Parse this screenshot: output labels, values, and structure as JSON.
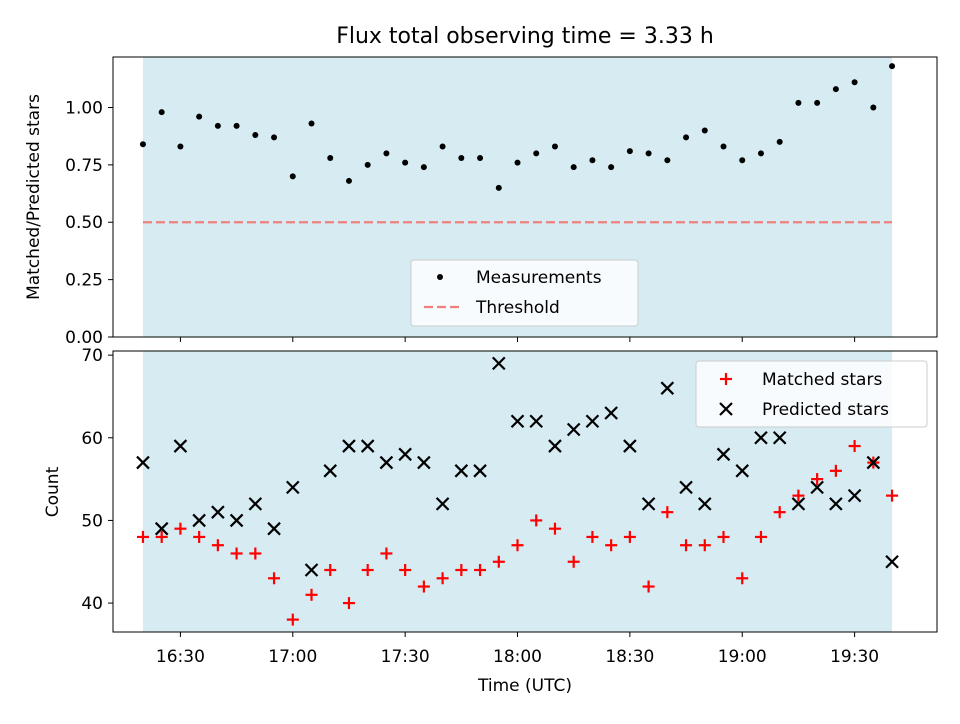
{
  "title": "Flux total observing time = 3.33 h",
  "colors": {
    "observing_span": "#add8e6",
    "measurement": "#000000",
    "threshold": "#f08080",
    "matched": "#ff0000",
    "predicted": "#000000"
  },
  "chart_data": [
    {
      "type": "scatter",
      "panel": "top",
      "ylabel": "Matched/Predicted stars",
      "ylim": [
        0,
        1.22
      ],
      "yticks": [
        "0.00",
        "0.25",
        "0.50",
        "0.75",
        "1.00"
      ],
      "x_time_range": [
        "16:12",
        "19:52"
      ],
      "shaded_span": [
        "16:20",
        "19:40"
      ],
      "legend": {
        "position": "lower center",
        "entries": [
          "Measurements",
          "Threshold"
        ]
      },
      "threshold": 0.5,
      "series": [
        {
          "name": "Measurements",
          "times": [
            "16:20",
            "16:25",
            "16:30",
            "16:35",
            "16:40",
            "16:45",
            "16:50",
            "16:55",
            "17:00",
            "17:05",
            "17:10",
            "17:15",
            "17:20",
            "17:25",
            "17:30",
            "17:35",
            "17:40",
            "17:45",
            "17:50",
            "17:55",
            "18:00",
            "18:05",
            "18:10",
            "18:15",
            "18:20",
            "18:25",
            "18:30",
            "18:35",
            "18:40",
            "18:45",
            "18:50",
            "18:55",
            "19:00",
            "19:05",
            "19:10",
            "19:15",
            "19:20",
            "19:25",
            "19:30",
            "19:35",
            "19:40"
          ],
          "values": [
            0.84,
            0.98,
            0.83,
            0.96,
            0.92,
            0.92,
            0.88,
            0.87,
            0.7,
            0.93,
            0.78,
            0.68,
            0.75,
            0.8,
            0.76,
            0.74,
            0.83,
            0.78,
            0.78,
            0.65,
            0.76,
            0.8,
            0.83,
            0.74,
            0.77,
            0.74,
            0.81,
            0.8,
            0.77,
            0.87,
            0.9,
            0.83,
            0.77,
            0.8,
            0.85,
            1.02,
            1.02,
            1.08,
            1.11,
            1.0,
            1.18
          ]
        }
      ]
    },
    {
      "type": "scatter",
      "panel": "bottom",
      "xlabel": "Time (UTC)",
      "ylabel": "Count",
      "ylim": [
        36.5,
        70.5
      ],
      "yticks": [
        "40",
        "50",
        "60",
        "70"
      ],
      "xticks": [
        "16:30",
        "17:00",
        "17:30",
        "18:00",
        "18:30",
        "19:00",
        "19:30"
      ],
      "x_time_range": [
        "16:12",
        "19:52"
      ],
      "shaded_span": [
        "16:20",
        "19:40"
      ],
      "legend": {
        "position": "upper right",
        "entries": [
          "Matched stars",
          "Predicted stars"
        ]
      },
      "times": [
        "16:20",
        "16:25",
        "16:30",
        "16:35",
        "16:40",
        "16:45",
        "16:50",
        "16:55",
        "17:00",
        "17:05",
        "17:10",
        "17:15",
        "17:20",
        "17:25",
        "17:30",
        "17:35",
        "17:40",
        "17:45",
        "17:50",
        "17:55",
        "18:00",
        "18:05",
        "18:10",
        "18:15",
        "18:20",
        "18:25",
        "18:30",
        "18:35",
        "18:40",
        "18:45",
        "18:50",
        "18:55",
        "19:00",
        "19:05",
        "19:10",
        "19:15",
        "19:20",
        "19:25",
        "19:30",
        "19:35",
        "19:40"
      ],
      "series": [
        {
          "name": "Matched stars",
          "values": [
            48,
            48,
            49,
            48,
            47,
            46,
            46,
            43,
            38,
            41,
            44,
            40,
            44,
            46,
            44,
            42,
            43,
            44,
            44,
            45,
            47,
            50,
            49,
            45,
            48,
            47,
            48,
            42,
            51,
            47,
            47,
            48,
            43,
            48,
            51,
            53,
            55,
            56,
            59,
            57,
            53
          ]
        },
        {
          "name": "Predicted stars",
          "values": [
            57,
            49,
            59,
            50,
            51,
            50,
            52,
            49,
            54,
            44,
            56,
            59,
            59,
            57,
            58,
            57,
            52,
            56,
            56,
            69,
            62,
            62,
            59,
            61,
            62,
            63,
            59,
            52,
            66,
            54,
            52,
            58,
            56,
            60,
            60,
            52,
            54,
            52,
            53,
            57,
            45
          ]
        }
      ]
    }
  ]
}
